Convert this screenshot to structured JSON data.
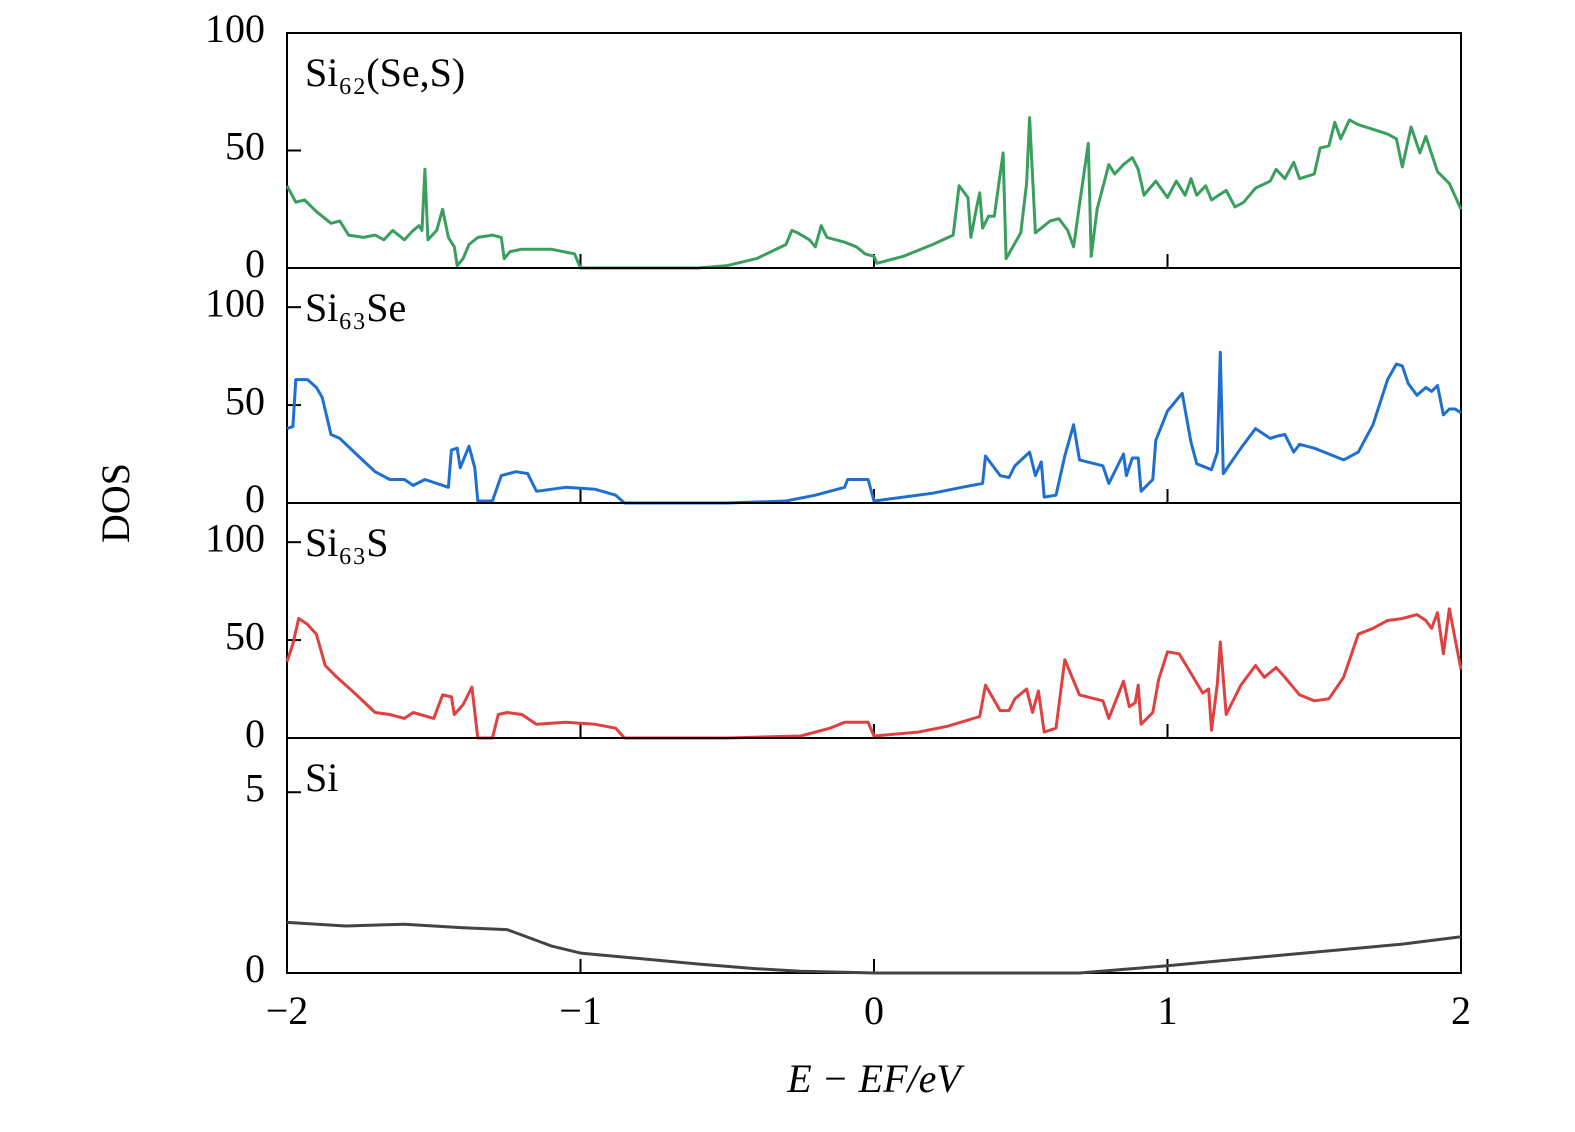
{
  "ylabel": "DOS",
  "chart_data": [
    {
      "type": "line",
      "ylim": [
        0,
        100
      ],
      "yticks": [
        0,
        50,
        100
      ],
      "x": [
        -2.0,
        -1.97,
        -1.94,
        -1.9,
        -1.85,
        -1.82,
        -1.79,
        -1.74,
        -1.7,
        -1.67,
        -1.64,
        -1.6,
        -1.57,
        -1.55,
        -1.54,
        -1.53,
        -1.52,
        -1.49,
        -1.47,
        -1.45,
        -1.43,
        -1.42,
        -1.4,
        -1.38,
        -1.35,
        -1.3,
        -1.27,
        -1.26,
        -1.24,
        -1.2,
        -1.1,
        -1.02,
        -1.0,
        -0.8,
        -0.6,
        -0.5,
        -0.4,
        -0.3,
        -0.28,
        -0.26,
        -0.22,
        -0.2,
        -0.18,
        -0.16,
        -0.1,
        -0.06,
        -0.03,
        0.0,
        0.01,
        0.1,
        0.2,
        0.27,
        0.29,
        0.32,
        0.33,
        0.35,
        0.36,
        0.37,
        0.39,
        0.41,
        0.44,
        0.45,
        0.5,
        0.52,
        0.53,
        0.55,
        0.6,
        0.63,
        0.66,
        0.68,
        0.7,
        0.73,
        0.74,
        0.76,
        0.8,
        0.82,
        0.85,
        0.88,
        0.9,
        0.92,
        0.96,
        1.0,
        1.03,
        1.06,
        1.08,
        1.1,
        1.13,
        1.15,
        1.2,
        1.23,
        1.26,
        1.3,
        1.35,
        1.37,
        1.4,
        1.43,
        1.45,
        1.5,
        1.52,
        1.55,
        1.57,
        1.59,
        1.62,
        1.65,
        1.7,
        1.75,
        1.78,
        1.8,
        1.83,
        1.86,
        1.88,
        1.92,
        1.96,
        2.0
      ],
      "series": [
        {
          "name": "Si₆₂(Se,S)",
          "color": "#3a9f5e",
          "values": [
            35,
            28,
            29,
            24,
            19,
            20,
            14,
            13,
            14,
            12,
            16,
            12,
            16,
            18,
            16,
            42,
            12,
            16,
            25,
            13,
            9,
            1,
            4,
            10,
            13,
            14,
            13,
            4,
            7,
            8,
            8,
            6,
            0,
            0,
            0,
            1,
            4,
            10,
            16,
            15,
            12,
            9,
            18,
            13,
            11,
            9,
            6,
            5,
            2,
            5,
            10,
            14,
            35,
            30,
            13,
            26,
            32,
            17,
            22,
            22,
            49,
            4,
            15,
            36,
            64,
            15,
            20,
            21,
            16,
            9,
            27,
            53,
            5,
            25,
            44,
            40,
            44,
            47,
            42,
            31,
            37,
            30,
            37,
            31,
            38,
            31,
            35,
            29,
            33,
            26,
            28,
            34,
            37,
            42,
            38,
            45,
            38,
            40,
            51,
            52,
            62,
            55,
            63,
            61,
            59,
            57,
            55,
            43,
            60,
            49,
            56,
            41,
            36,
            25
          ]
        }
      ]
    },
    {
      "type": "line",
      "ylim": [
        0,
        120
      ],
      "yticks": [
        0,
        50,
        100
      ],
      "x": [
        -2.0,
        -1.98,
        -1.97,
        -1.93,
        -1.9,
        -1.88,
        -1.85,
        -1.82,
        -1.75,
        -1.7,
        -1.65,
        -1.6,
        -1.57,
        -1.53,
        -1.45,
        -1.44,
        -1.42,
        -1.41,
        -1.38,
        -1.36,
        -1.35,
        -1.3,
        -1.27,
        -1.22,
        -1.18,
        -1.15,
        -1.05,
        -0.95,
        -0.88,
        -0.85,
        -0.5,
        -0.3,
        -0.2,
        -0.1,
        -0.09,
        -0.02,
        0.0,
        0.1,
        0.2,
        0.3,
        0.37,
        0.38,
        0.43,
        0.46,
        0.48,
        0.53,
        0.55,
        0.57,
        0.58,
        0.62,
        0.65,
        0.68,
        0.7,
        0.78,
        0.8,
        0.85,
        0.86,
        0.88,
        0.9,
        0.91,
        0.95,
        0.96,
        1.0,
        1.05,
        1.08,
        1.1,
        1.15,
        1.17,
        1.18,
        1.19,
        1.25,
        1.3,
        1.35,
        1.37,
        1.4,
        1.43,
        1.45,
        1.5,
        1.55,
        1.6,
        1.65,
        1.7,
        1.75,
        1.78,
        1.8,
        1.82,
        1.85,
        1.88,
        1.9,
        1.92,
        1.94,
        1.96,
        1.98,
        2.0
      ],
      "series": [
        {
          "name": "Si₆₃Se",
          "color": "#1f6fd1",
          "values": [
            38,
            39,
            63,
            63,
            59,
            54,
            35,
            33,
            23,
            16,
            12,
            12,
            9,
            12,
            8,
            27,
            28,
            18,
            29,
            18,
            1,
            1,
            14,
            16,
            15,
            6,
            8,
            7,
            4,
            0,
            0,
            1,
            4,
            8,
            12,
            12,
            1,
            3,
            5,
            8,
            10,
            24,
            14,
            13,
            19,
            26,
            14,
            21,
            3,
            4,
            24,
            40,
            22,
            19,
            10,
            25,
            14,
            23,
            23,
            6,
            12,
            32,
            47,
            56,
            31,
            20,
            17,
            26,
            77,
            15,
            28,
            38,
            33,
            34,
            35,
            26,
            30,
            28,
            25,
            22,
            26,
            40,
            63,
            71,
            70,
            61,
            55,
            59,
            57,
            60,
            45,
            48,
            48,
            46
          ]
        }
      ]
    },
    {
      "type": "line",
      "ylim": [
        0,
        120
      ],
      "yticks": [
        0,
        50,
        100
      ],
      "x": [
        -2.0,
        -1.98,
        -1.96,
        -1.93,
        -1.9,
        -1.87,
        -1.83,
        -1.77,
        -1.7,
        -1.65,
        -1.6,
        -1.57,
        -1.5,
        -1.47,
        -1.44,
        -1.43,
        -1.4,
        -1.37,
        -1.35,
        -1.3,
        -1.28,
        -1.25,
        -1.2,
        -1.15,
        -1.05,
        -0.95,
        -0.88,
        -0.85,
        -0.5,
        -0.25,
        -0.15,
        -0.1,
        -0.02,
        0.0,
        0.15,
        0.25,
        0.36,
        0.38,
        0.43,
        0.46,
        0.48,
        0.52,
        0.54,
        0.56,
        0.58,
        0.62,
        0.65,
        0.7,
        0.78,
        0.8,
        0.85,
        0.87,
        0.89,
        0.9,
        0.91,
        0.95,
        0.97,
        1.0,
        1.04,
        1.08,
        1.12,
        1.14,
        1.15,
        1.17,
        1.18,
        1.2,
        1.25,
        1.3,
        1.33,
        1.37,
        1.4,
        1.45,
        1.5,
        1.55,
        1.6,
        1.65,
        1.7,
        1.75,
        1.8,
        1.85,
        1.88,
        1.9,
        1.92,
        1.94,
        1.96,
        2.0
      ],
      "series": [
        {
          "name": "Si₆₃S",
          "color": "#e04040",
          "values": [
            39,
            48,
            61,
            58,
            53,
            37,
            31,
            23,
            13,
            12,
            10,
            13,
            10,
            22,
            21,
            12,
            17,
            26,
            0,
            0,
            12,
            13,
            12,
            7,
            8,
            7,
            5,
            0,
            0,
            1,
            5,
            8,
            8,
            1,
            3,
            6,
            11,
            27,
            14,
            14,
            20,
            25,
            13,
            24,
            3,
            5,
            40,
            22,
            19,
            10,
            29,
            16,
            18,
            27,
            7,
            13,
            30,
            44,
            43,
            33,
            23,
            25,
            4,
            28,
            49,
            12,
            27,
            37,
            31,
            36,
            31,
            22,
            19,
            20,
            31,
            53,
            56,
            60,
            61,
            63,
            60,
            56,
            64,
            43,
            66,
            35
          ]
        }
      ]
    },
    {
      "type": "line",
      "ylim": [
        0,
        6.5
      ],
      "yticks": [
        0,
        5
      ],
      "xlim": [
        -2,
        2
      ],
      "xticks": [
        {
          "value": -2,
          "label": "−2"
        },
        {
          "value": -1,
          "label": "−1"
        },
        0,
        1,
        2
      ],
      "xlabel": "E − EF/eV",
      "x": [
        -2.0,
        -1.8,
        -1.6,
        -1.4,
        -1.25,
        -1.2,
        -1.1,
        -1.0,
        -0.8,
        -0.6,
        -0.4,
        -0.25,
        -0.1,
        0.0,
        0.7,
        0.85,
        1.0,
        1.2,
        1.4,
        1.6,
        1.8,
        2.0
      ],
      "series": [
        {
          "name": "Si",
          "color": "#444444",
          "values": [
            1.4,
            1.3,
            1.35,
            1.25,
            1.2,
            1.05,
            0.75,
            0.55,
            0.4,
            0.25,
            0.12,
            0.05,
            0.02,
            0,
            0,
            0.1,
            0.2,
            0.35,
            0.5,
            0.65,
            0.8,
            1.0
          ]
        }
      ]
    }
  ]
}
